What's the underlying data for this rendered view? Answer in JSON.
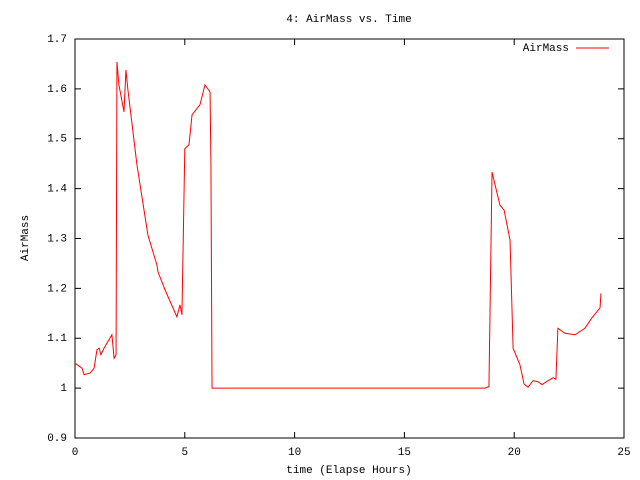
{
  "chart_data": {
    "type": "line",
    "title": "4: AirMass vs. Time",
    "xlabel": "time (Elapse Hours)",
    "ylabel": "AirMass",
    "x": [
      0,
      0.32,
      0.41,
      0.68,
      0.87,
      1.0,
      1.1,
      1.18,
      1.32,
      1.68,
      1.78,
      1.87,
      1.91,
      2.0,
      2.23,
      2.32,
      2.41,
      2.82,
      3.32,
      3.73,
      3.78,
      4.1,
      4.64,
      4.78,
      4.87,
      5.0,
      5.19,
      5.33,
      5.69,
      5.92,
      6.15,
      6.19,
      6.24,
      18.67,
      18.85,
      18.99,
      19.35,
      19.54,
      19.81,
      19.95,
      20.26,
      20.45,
      20.63,
      20.86,
      21.08,
      21.27,
      21.4,
      21.77,
      21.9,
      21.99,
      22.31,
      22.77,
      23.22,
      23.54,
      23.91,
      23.95
    ],
    "series": [
      {
        "name": "AirMass",
        "color": "#ff0000",
        "values": [
          1.05,
          1.04,
          1.027,
          1.03,
          1.04,
          1.077,
          1.08,
          1.067,
          1.08,
          1.107,
          1.06,
          1.067,
          1.654,
          1.608,
          1.554,
          1.638,
          1.598,
          1.448,
          1.307,
          1.247,
          1.233,
          1.197,
          1.143,
          1.167,
          1.147,
          1.48,
          1.488,
          1.548,
          1.568,
          1.608,
          1.594,
          1.448,
          1.0,
          1.0,
          1.003,
          1.433,
          1.367,
          1.357,
          1.297,
          1.08,
          1.047,
          1.008,
          1.002,
          1.015,
          1.013,
          1.007,
          1.011,
          1.021,
          1.018,
          1.12,
          1.11,
          1.107,
          1.12,
          1.141,
          1.161,
          1.19
        ]
      }
    ],
    "xlim": [
      0,
      25
    ],
    "xticks": [
      0,
      5,
      10,
      15,
      20,
      25
    ],
    "ylim": [
      0.9,
      1.7
    ],
    "yticks": [
      0.9,
      1,
      1.1,
      1.2,
      1.3,
      1.4,
      1.5,
      1.6,
      1.7
    ],
    "legend": "upper right",
    "grid": false
  }
}
